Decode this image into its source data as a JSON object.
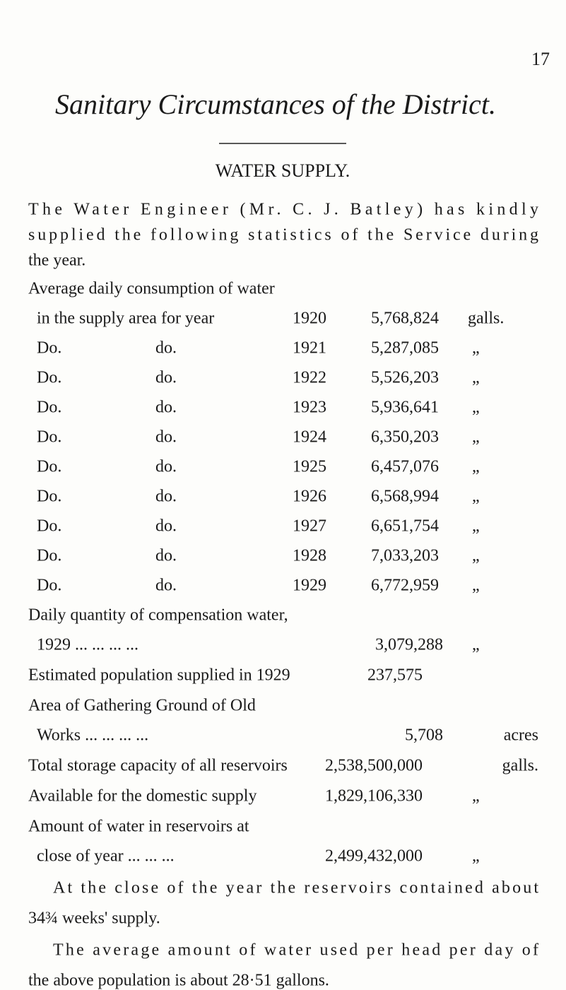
{
  "page_number": "17",
  "title": "Sanitary Circumstances of the District.",
  "heading": "WATER SUPPLY.",
  "intro": [
    "The Water Engineer (Mr. C. J. Batley) has kindly",
    "supplied the following statistics of the Service during",
    "the year."
  ],
  "consumption": {
    "label": "Average daily consumption of water",
    "rows": [
      {
        "label": "in the supply area for year",
        "year": "1920",
        "value": "5,768,824",
        "unit": "galls."
      },
      {
        "col1": "Do.",
        "col2": "do.",
        "year": "1921",
        "value": "5,287,085",
        "unit": "„"
      },
      {
        "col1": "Do.",
        "col2": "do.",
        "year": "1922",
        "value": "5,526,203",
        "unit": "„"
      },
      {
        "col1": "Do.",
        "col2": "do.",
        "year": "1923",
        "value": "5,936,641",
        "unit": "„"
      },
      {
        "col1": "Do.",
        "col2": "do.",
        "year": "1924",
        "value": "6,350,203",
        "unit": "„"
      },
      {
        "col1": "Do.",
        "col2": "do.",
        "year": "1925",
        "value": "6,457,076",
        "unit": "„"
      },
      {
        "col1": "Do.",
        "col2": "do.",
        "year": "1926",
        "value": "6,568,994",
        "unit": "„"
      },
      {
        "col1": "Do.",
        "col2": "do.",
        "year": "1927",
        "value": "6,651,754",
        "unit": "„"
      },
      {
        "col1": "Do.",
        "col2": "do.",
        "year": "1928",
        "value": "7,033,203",
        "unit": "„"
      },
      {
        "col1": "Do.",
        "col2": "do.",
        "year": "1929",
        "value": "6,772,959",
        "unit": "„"
      }
    ]
  },
  "items": [
    {
      "lines": [
        "Daily quantity of compensation water,",
        "1929 ... ... ... ..."
      ],
      "value": "3,079,288",
      "unit": "„"
    },
    {
      "lines": [
        "Estimated population supplied in 1929"
      ],
      "value": "237,575"
    },
    {
      "lines": [
        "Area of Gathering Ground of Old",
        "Works ... ... ... ..."
      ],
      "value": "5,708",
      "unit": "acres"
    },
    {
      "lines": [
        "Total storage capacity of all reservoirs"
      ],
      "value": "2,538,500,000",
      "unit": "galls."
    },
    {
      "lines": [
        "Available for the domestic supply"
      ],
      "value": "1,829,106,330",
      "unit": "„"
    },
    {
      "lines": [
        "Amount of water in reservoirs at",
        "close of year ... ... ..."
      ],
      "value": "2,499,432,000",
      "unit": "„"
    }
  ],
  "closing": [
    [
      "At the close of the year the reservoirs contained about",
      "34¾ weeks' supply."
    ],
    [
      "The average amount of water used per head per day of",
      "the above population is about 28·51 gallons."
    ]
  ]
}
